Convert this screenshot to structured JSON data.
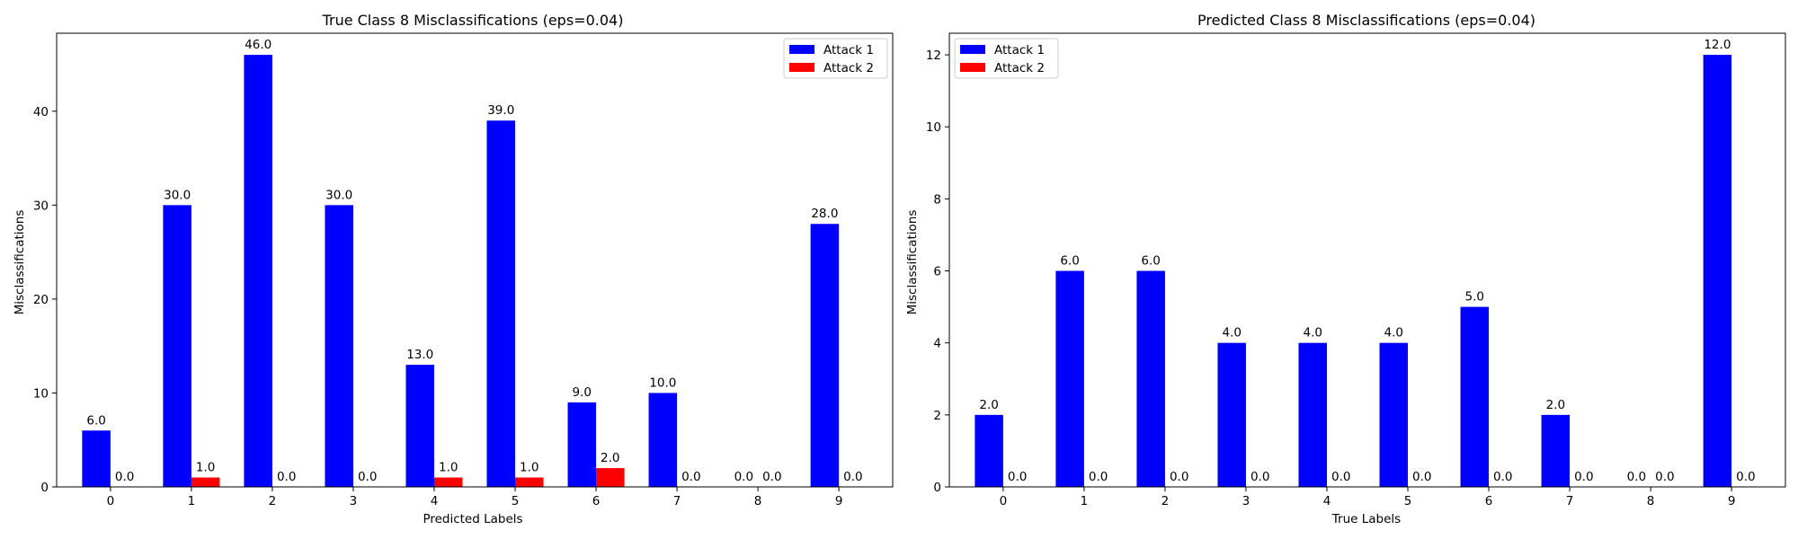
{
  "chart_data": [
    {
      "type": "bar",
      "title": "True Class 8 Misclassifications (eps=0.04)",
      "xlabel": "Predicted Labels",
      "ylabel": "Misclassifications",
      "categories": [
        "0",
        "1",
        "2",
        "3",
        "4",
        "5",
        "6",
        "7",
        "8",
        "9"
      ],
      "ylim": [
        0,
        48.3
      ],
      "yticks": [
        0,
        10,
        20,
        30,
        40
      ],
      "legend_position": "top-right",
      "series": [
        {
          "name": "Attack 1",
          "color": "#0000ff",
          "values": [
            6,
            30,
            46,
            30,
            13,
            39,
            9,
            10,
            0,
            28
          ]
        },
        {
          "name": "Attack 2",
          "color": "#ff0000",
          "values": [
            0,
            1,
            0,
            0,
            1,
            1,
            2,
            0,
            0,
            0
          ]
        }
      ]
    },
    {
      "type": "bar",
      "title": "Predicted Class 8 Misclassifications (eps=0.04)",
      "xlabel": "True Labels",
      "ylabel": "Misclassifications",
      "categories": [
        "0",
        "1",
        "2",
        "3",
        "4",
        "5",
        "6",
        "7",
        "8",
        "9"
      ],
      "ylim": [
        0,
        12.6
      ],
      "yticks": [
        0,
        2,
        4,
        6,
        8,
        10,
        12
      ],
      "legend_position": "top-left",
      "series": [
        {
          "name": "Attack 1",
          "color": "#0000ff",
          "values": [
            2,
            6,
            6,
            4,
            4,
            4,
            5,
            2,
            0,
            12
          ]
        },
        {
          "name": "Attack 2",
          "color": "#ff0000",
          "values": [
            0,
            0,
            0,
            0,
            0,
            0,
            0,
            0,
            0,
            0
          ]
        }
      ]
    }
  ]
}
